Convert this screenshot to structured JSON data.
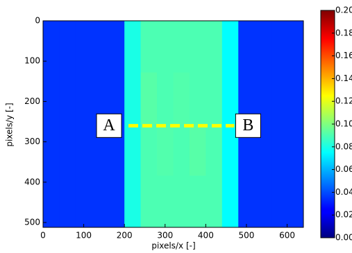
{
  "chart_data": {
    "type": "heatmap",
    "x_label": "pixels/x [-]",
    "y_label": "pixels/y [-]",
    "xlim": [
      0,
      640
    ],
    "ylim": [
      512,
      0
    ],
    "xticks": [
      0,
      100,
      200,
      300,
      400,
      500,
      600
    ],
    "yticks": [
      0,
      100,
      200,
      300,
      400,
      500
    ],
    "colormap": "jet",
    "clim": [
      0,
      0.2
    ],
    "cticks": [
      {
        "value": 0,
        "label": "0.00"
      },
      {
        "value": 0.02,
        "label": "0.02"
      },
      {
        "value": 0.04,
        "label": "0.04"
      },
      {
        "value": 0.06,
        "label": "0.06"
      },
      {
        "value": 0.08,
        "label": "0.08"
      },
      {
        "value": 0.1,
        "label": "0.10"
      },
      {
        "value": 0.12,
        "label": "0.12"
      },
      {
        "value": 0.14,
        "label": "0.14"
      },
      {
        "value": 0.16,
        "label": "0.16"
      },
      {
        "value": 0.18,
        "label": "0.18"
      },
      {
        "value": 0.2,
        "label": "0.20"
      }
    ],
    "z": [
      [
        0.035,
        0.035,
        0.035,
        0.035,
        0.035,
        0.08,
        0.09,
        0.09,
        0.09,
        0.09,
        0.09,
        0.075,
        0.035,
        0.035,
        0.035,
        0.035
      ],
      [
        0.035,
        0.035,
        0.035,
        0.035,
        0.035,
        0.08,
        0.092,
        0.09,
        0.091,
        0.09,
        0.09,
        0.075,
        0.035,
        0.035,
        0.035,
        0.035
      ],
      [
        0.035,
        0.035,
        0.035,
        0.035,
        0.035,
        0.08,
        0.09,
        0.091,
        0.09,
        0.092,
        0.09,
        0.075,
        0.035,
        0.035,
        0.035,
        0.035
      ],
      [
        0.035,
        0.035,
        0.035,
        0.035,
        0.035,
        0.08,
        0.09,
        0.09,
        0.09,
        0.09,
        0.09,
        0.075,
        0.035,
        0.035,
        0.035,
        0.035
      ]
    ],
    "profile_line": {
      "x": [
        210,
        470
      ],
      "y": [
        260,
        260
      ],
      "color": "#ffff00",
      "labels": [
        "A",
        "B"
      ]
    }
  }
}
